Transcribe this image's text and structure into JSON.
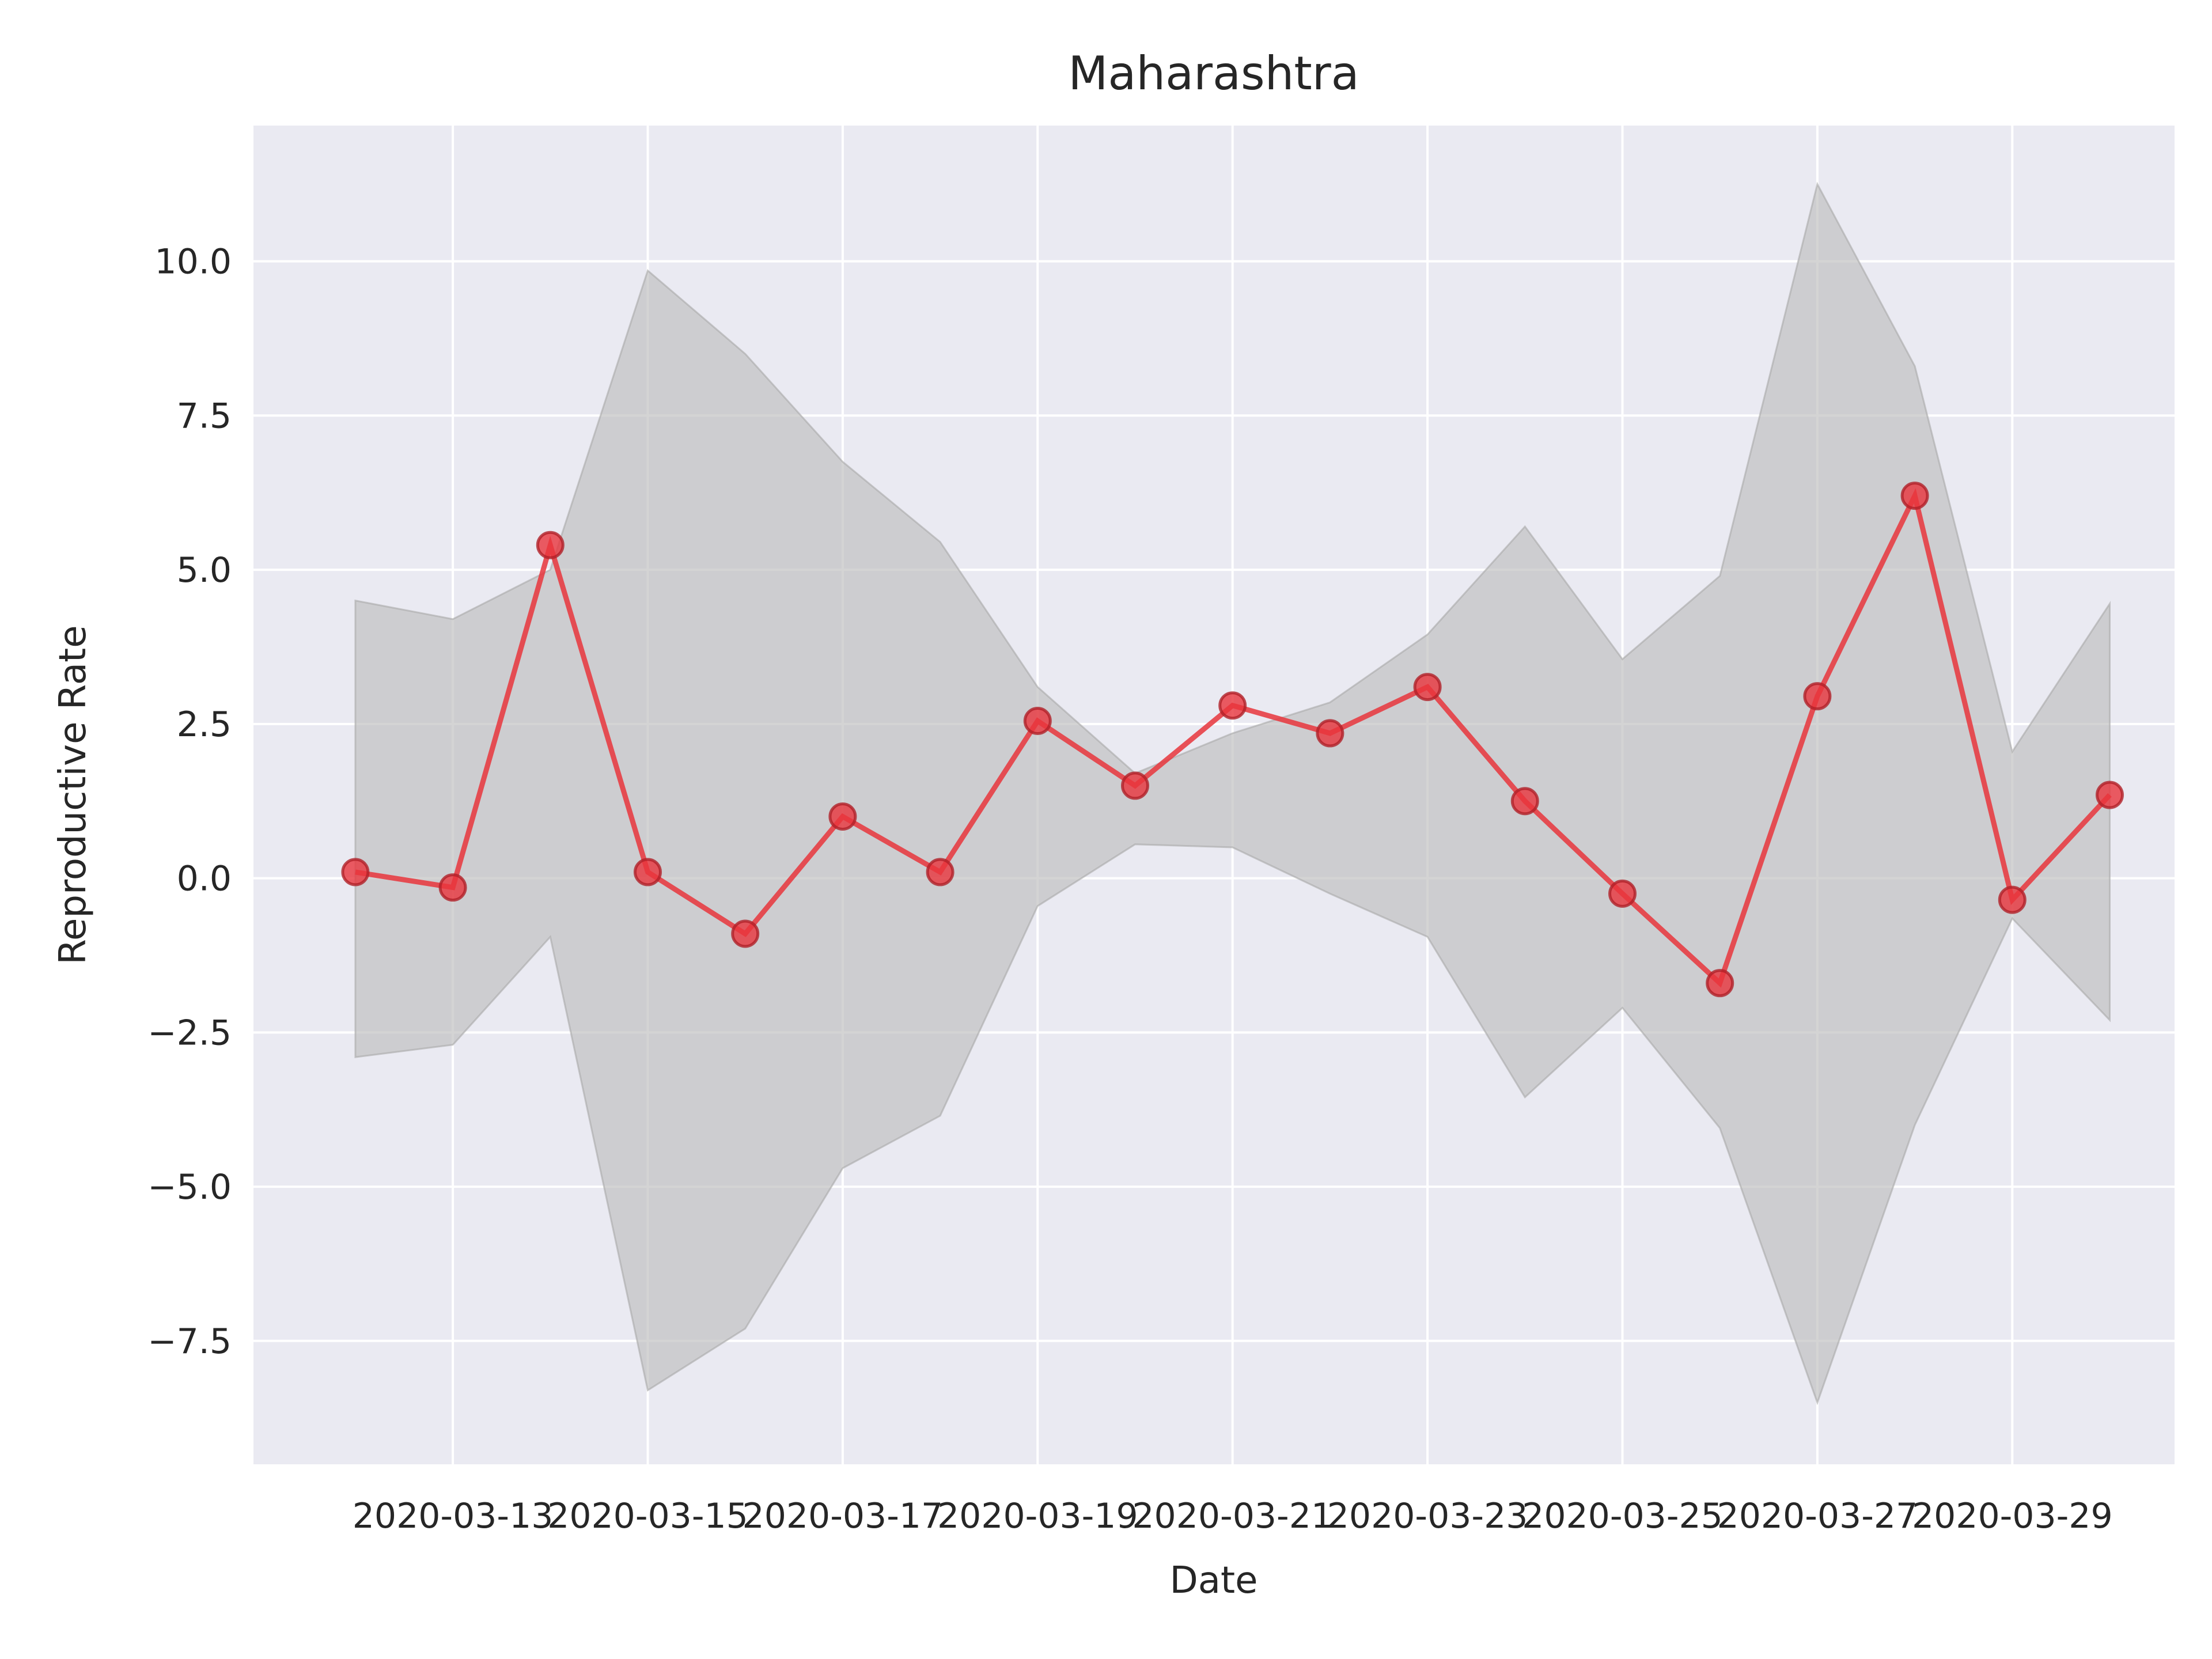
{
  "chart_data": {
    "type": "line",
    "title": "Maharashtra",
    "xlabel": "Date",
    "ylabel": "Reproductive Rate",
    "x": [
      "2020-03-12",
      "2020-03-13",
      "2020-03-14",
      "2020-03-15",
      "2020-03-16",
      "2020-03-17",
      "2020-03-18",
      "2020-03-19",
      "2020-03-20",
      "2020-03-21",
      "2020-03-22",
      "2020-03-23",
      "2020-03-24",
      "2020-03-25",
      "2020-03-26",
      "2020-03-27",
      "2020-03-28",
      "2020-03-29",
      "2020-03-30"
    ],
    "x_ticks": [
      "2020-03-13",
      "2020-03-15",
      "2020-03-17",
      "2020-03-19",
      "2020-03-21",
      "2020-03-23",
      "2020-03-25",
      "2020-03-27",
      "2020-03-29"
    ],
    "y_ticks": [
      -7.5,
      -5.0,
      -2.5,
      0.0,
      2.5,
      5.0,
      7.5,
      10.0
    ],
    "ylim": [
      -9.5,
      12.2
    ],
    "xlim": [
      "2020-03-11 (approx)",
      "2020-03-31 (approx)"
    ],
    "grid": true,
    "series": [
      {
        "values": [
          0.1,
          -0.15,
          5.4,
          0.1,
          -0.9,
          1.0,
          0.1,
          2.55,
          1.5,
          2.8,
          2.35,
          3.1,
          1.25,
          -0.25,
          -1.7,
          2.95,
          6.2,
          -0.35,
          1.35
        ],
        "lower": [
          -2.9,
          -2.7,
          -0.95,
          -8.3,
          -7.3,
          -4.7,
          -3.85,
          -0.45,
          0.55,
          0.5,
          -0.25,
          -0.95,
          -3.55,
          -2.1,
          -4.05,
          -8.5,
          -4.0,
          -0.65,
          -2.3
        ],
        "upper": [
          4.5,
          4.2,
          5.0,
          9.85,
          8.5,
          6.75,
          5.45,
          3.1,
          1.7,
          2.35,
          2.85,
          3.95,
          5.7,
          3.55,
          4.9,
          11.25,
          8.3,
          2.05,
          4.45
        ]
      }
    ],
    "colors": {
      "line": "#e8353c",
      "band": "#bdbdbd",
      "plot_bg": "#eaeaf2",
      "grid": "#ffffff"
    }
  }
}
